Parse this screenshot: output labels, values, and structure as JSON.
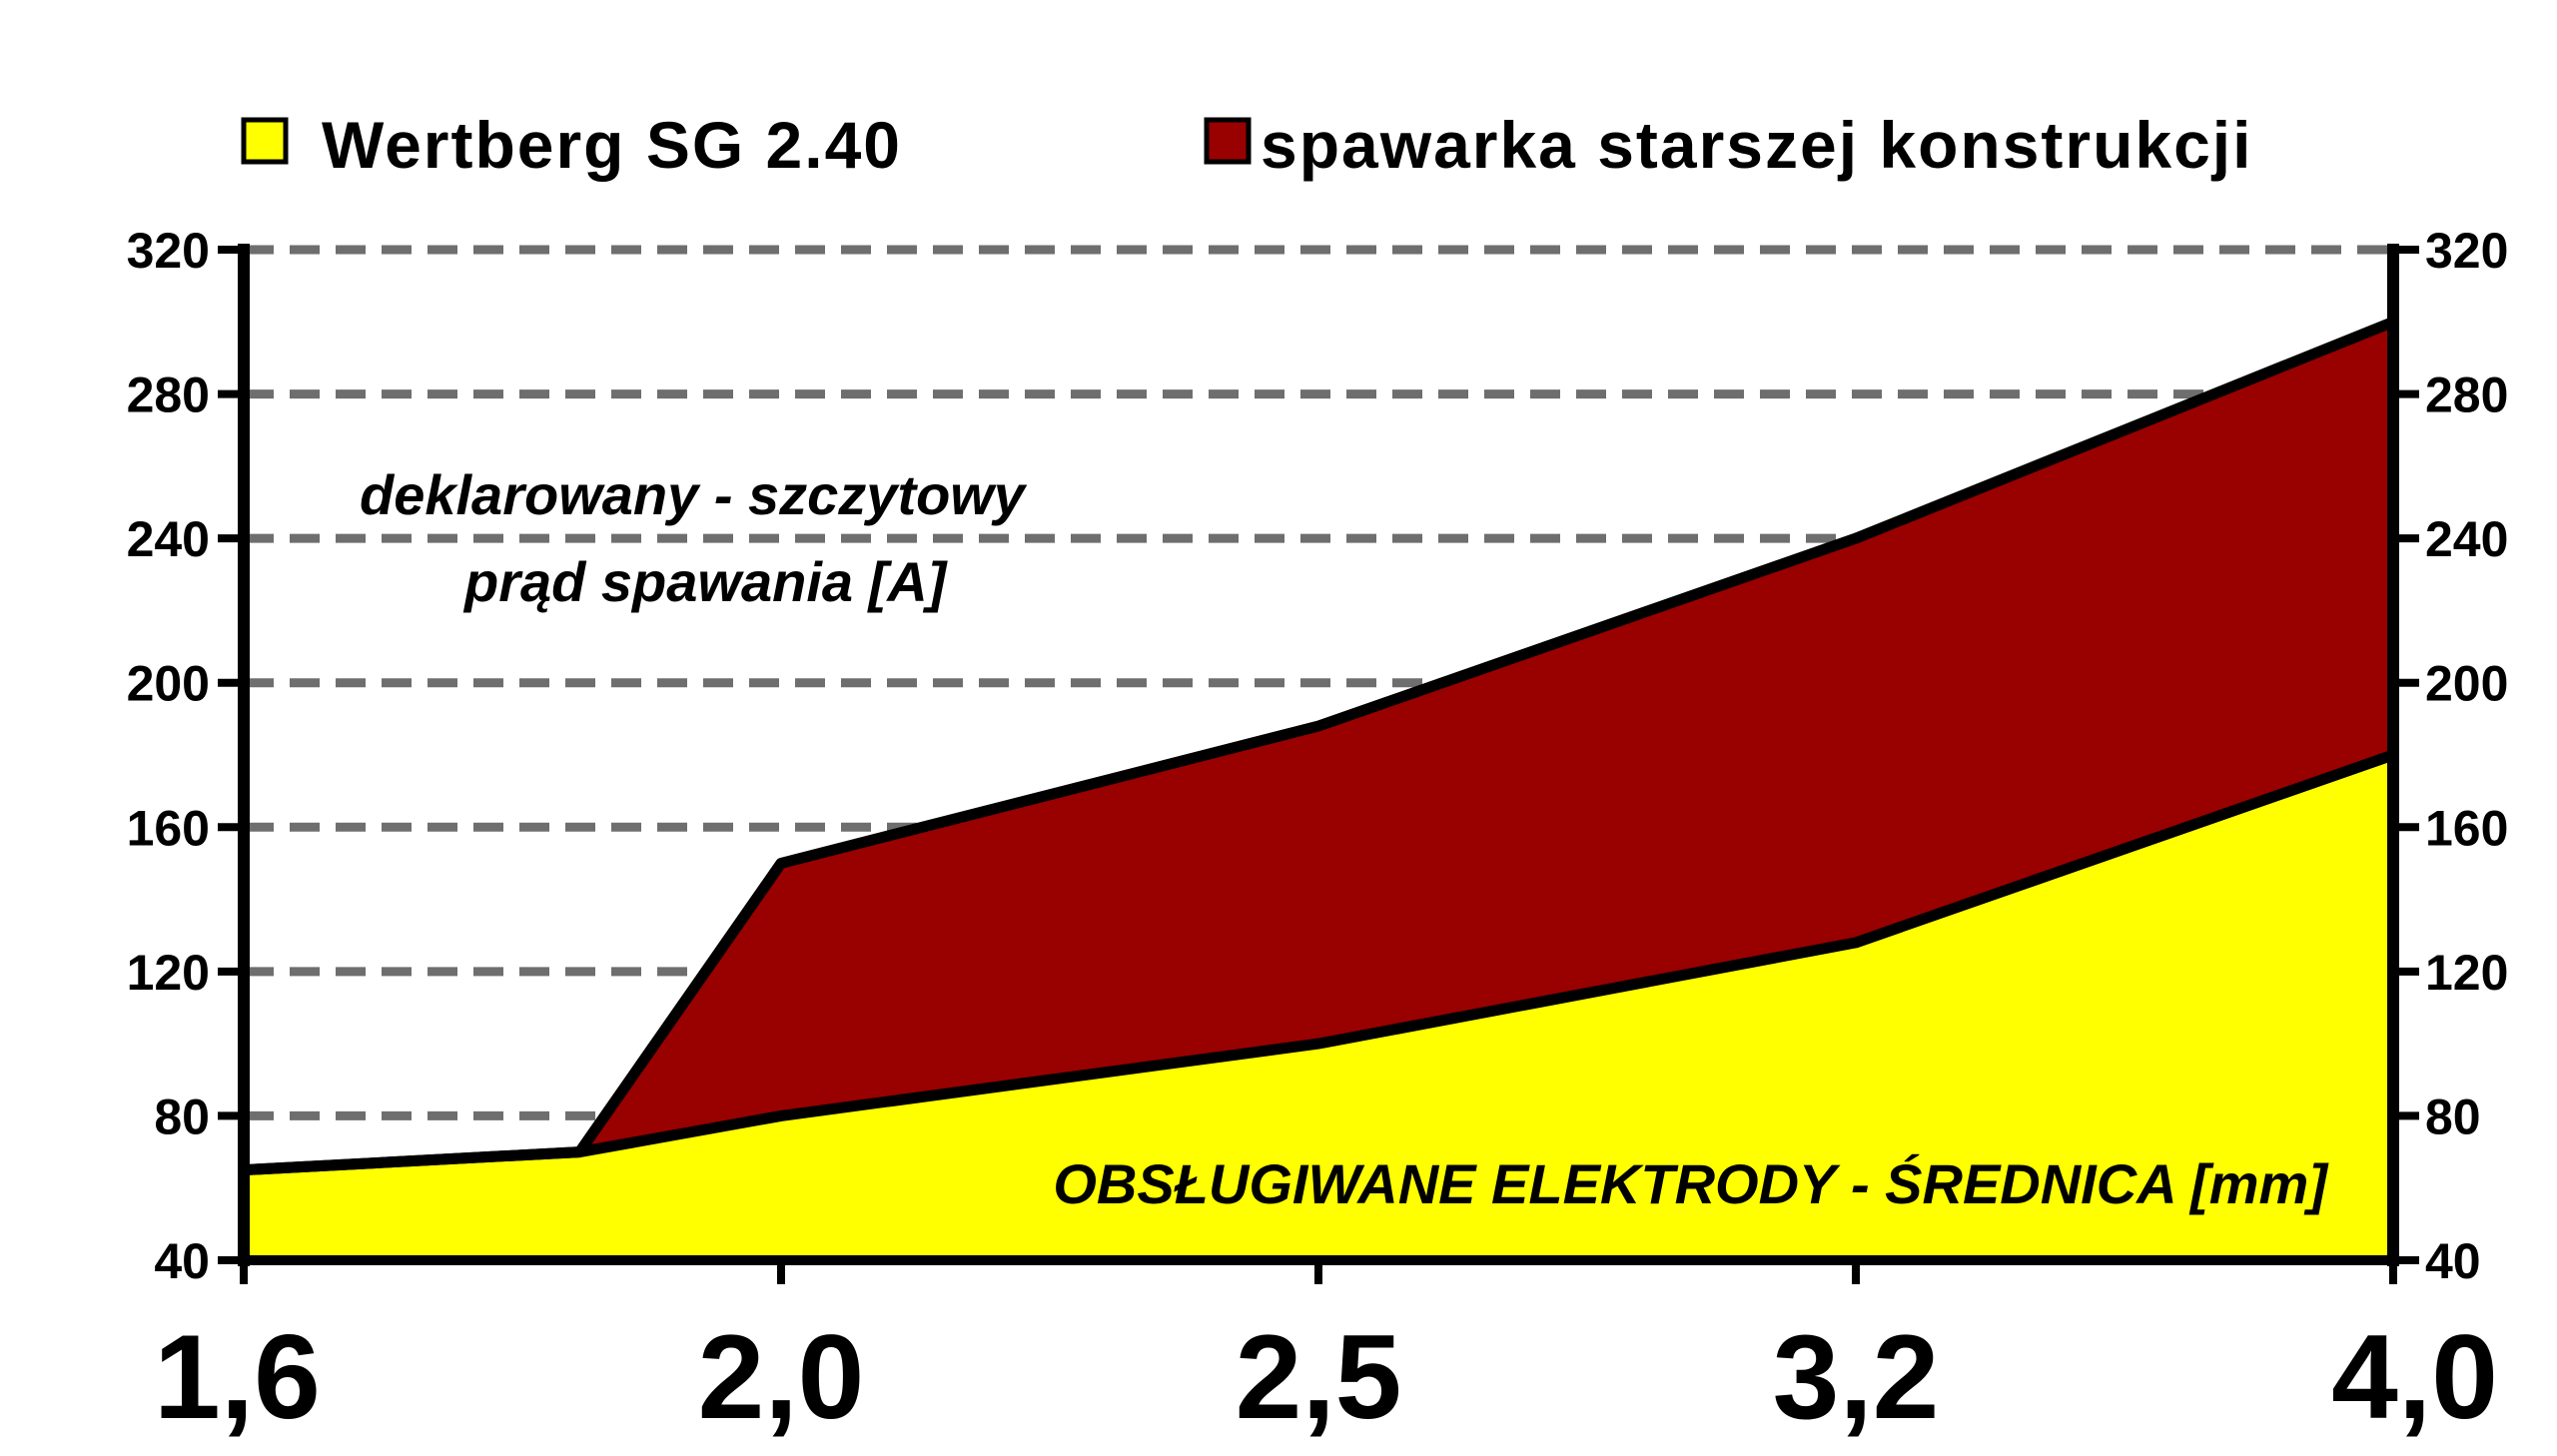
{
  "chart_data": {
    "type": "area",
    "title": "",
    "categories": [
      "1,6",
      "2,0",
      "2,5",
      "3,2",
      "4,0"
    ],
    "ylim": [
      40,
      320
    ],
    "yticks": [
      "40",
      "80",
      "120",
      "160",
      "200",
      "240",
      "280",
      "320"
    ],
    "grid": true,
    "legend_position": "top",
    "series": [
      {
        "name": "Wertberg SG 2.40",
        "color": "#ffff00",
        "points": [
          [
            1.6,
            65
          ],
          [
            1.85,
            70
          ],
          [
            2.0,
            80
          ],
          [
            2.5,
            100
          ],
          [
            3.2,
            128
          ],
          [
            4.0,
            180
          ]
        ]
      },
      {
        "name": "spawarka starszej konstrukcji",
        "color": "#990000",
        "points": [
          [
            1.6,
            65
          ],
          [
            1.85,
            70
          ],
          [
            2.0,
            150
          ],
          [
            2.5,
            188
          ],
          [
            3.2,
            240
          ],
          [
            4.0,
            300
          ]
        ]
      }
    ],
    "annotations": {
      "ylabel_line1": "deklarowany - szczytowy",
      "ylabel_line2": "prąd spawania [A]",
      "xlabel": "OBSŁUGIWANE ELEKTRODY - ŚREDNICA [mm]"
    }
  }
}
